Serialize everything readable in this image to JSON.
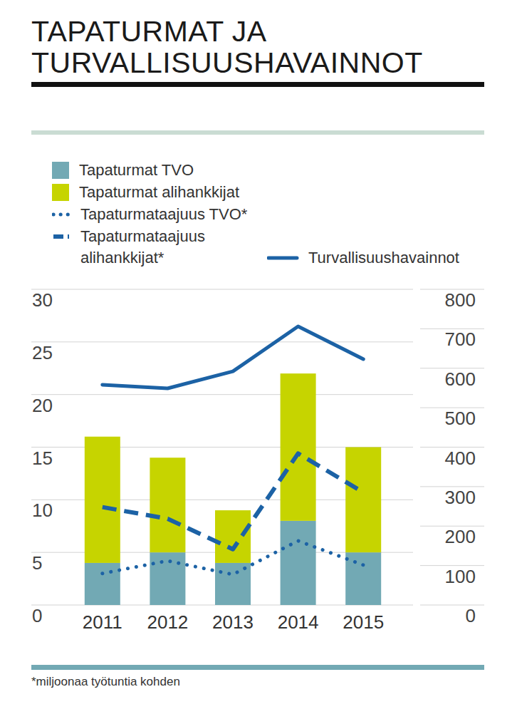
{
  "chart_data": {
    "type": "bar",
    "title": "TAPATURMAT JA TURVALLISUUSHAVAINNOT",
    "note": "*miljoonaa työtuntia kohden",
    "categories": [
      "2011",
      "2012",
      "2013",
      "2014",
      "2015"
    ],
    "stacked": true,
    "grid": true,
    "legend": "top",
    "ylim": [
      0,
      30
    ],
    "yticks": [
      0,
      5,
      10,
      15,
      20,
      25,
      30
    ],
    "y2lim": [
      0,
      800
    ],
    "y2ticks": [
      0,
      100,
      200,
      300,
      400,
      500,
      600,
      700,
      800
    ],
    "series": [
      {
        "name": "Tapaturmat TVO",
        "type": "bar",
        "color": "#72a9b4",
        "values": [
          4,
          5,
          4,
          8,
          5
        ]
      },
      {
        "name": "Tapaturmat alihankkijat",
        "type": "bar",
        "color": "#c6d400",
        "values": [
          12,
          9,
          5,
          14,
          10
        ]
      },
      {
        "name": "Tapaturmataajuus TVO*",
        "type": "line",
        "line_style": "dotted",
        "color": "#1c62a5",
        "values": [
          3.0,
          4.2,
          2.9,
          6.1,
          3.8
        ]
      },
      {
        "name": "Tapaturmataajuus alihankkijat*",
        "type": "line",
        "line_style": "dashed",
        "color": "#1c62a5",
        "values": [
          9.3,
          8.2,
          5.3,
          14.4,
          10.7
        ]
      },
      {
        "name": "Turvallisuushavainnot",
        "type": "line",
        "line_style": "solid",
        "color": "#1c62a5",
        "axis": "y2",
        "values": [
          558,
          549,
          592,
          706,
          623
        ]
      }
    ]
  }
}
